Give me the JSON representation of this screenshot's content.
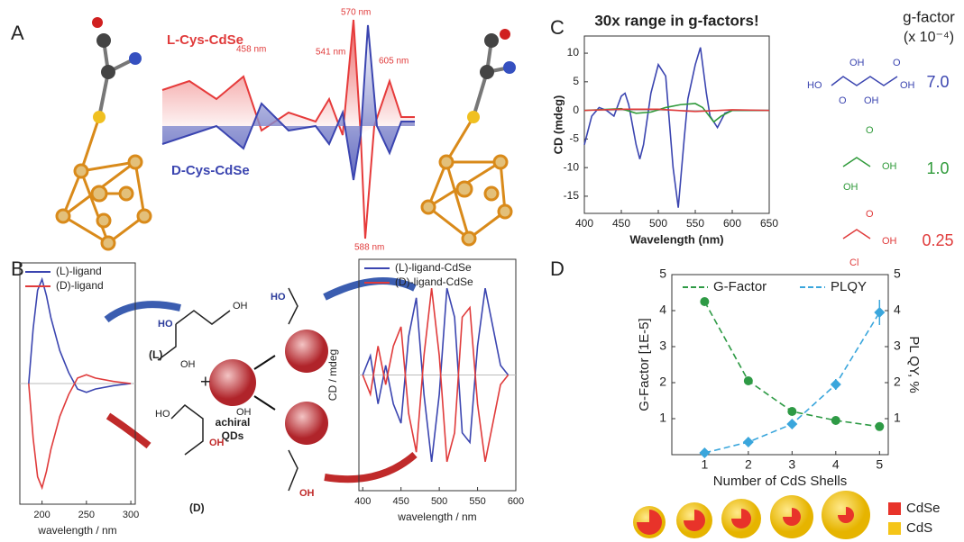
{
  "panels": {
    "A": {
      "label": "A",
      "l_name": "L-Cys-CdSe",
      "d_name": "D-Cys-CdSe",
      "peaks": [
        "458 nm",
        "541 nm",
        "570 nm",
        "605 nm",
        "588 nm"
      ]
    },
    "B": {
      "label": "B",
      "plus": "+",
      "l": "(L)",
      "d": "(D)",
      "qd": [
        "achiral",
        "QDs"
      ],
      "atoms": [
        "OH",
        "HO",
        "OH",
        "HO",
        "OH",
        "OH",
        "HO",
        "OH"
      ]
    },
    "C": {
      "label": "C",
      "gf_title": "g-factor",
      "gf_unit": "(x 10⁻⁴)",
      "g_values": [
        "7.0",
        "1.0",
        "0.25"
      ],
      "atoms": [
        "HO",
        "O",
        "OH",
        "OH",
        "O",
        "OH",
        "O",
        "OH",
        "OH",
        "O",
        "OH",
        "Cl"
      ]
    },
    "D": {
      "label": "D",
      "materials": [
        "CdSe",
        "CdS"
      ]
    }
  },
  "chart_data": [
    {
      "type": "line",
      "title": "30x range in g-factors!",
      "x_label": "Wavelength (nm)",
      "y_label": "CD (mdeg)",
      "xlim": [
        400,
        650
      ],
      "xticks": [
        400,
        450,
        500,
        550,
        600,
        650
      ],
      "ylim": [
        -18,
        13
      ],
      "yticks": [
        -15,
        -10,
        -5,
        0,
        5,
        10
      ],
      "series": [
        {
          "color": "#3b45b0",
          "x": [
            400,
            410,
            420,
            430,
            440,
            450,
            455,
            460,
            470,
            475,
            480,
            490,
            500,
            510,
            520,
            527,
            535,
            540,
            550,
            557,
            565,
            570,
            580,
            590,
            600,
            650
          ],
          "values": [
            -6,
            -1,
            0.5,
            0,
            -1,
            2.5,
            3,
            1,
            -6,
            -8.5,
            -6,
            3,
            8,
            6,
            -10,
            -17,
            -5,
            2,
            8,
            11,
            3,
            -1,
            -3,
            -0.5,
            0,
            0
          ]
        },
        {
          "color": "#2f9a3a",
          "x": [
            400,
            450,
            470,
            490,
            510,
            530,
            550,
            560,
            575,
            585,
            600,
            650
          ],
          "values": [
            0,
            0.3,
            -0.5,
            -0.3,
            0.5,
            1,
            1.2,
            0.5,
            -2,
            -1,
            0,
            0
          ]
        },
        {
          "color": "#e03b3b",
          "x": [
            400,
            450,
            500,
            550,
            600,
            650
          ],
          "values": [
            0,
            0.2,
            0.2,
            -0.2,
            0.1,
            0
          ]
        }
      ]
    },
    {
      "type": "line",
      "x_label": "Number of CdS Shells",
      "y_label": "G-Factor [1E-5]",
      "y2_label": "PL QY, %",
      "legend": "top",
      "xlim": [
        0.25,
        5.2
      ],
      "xticks": [
        1,
        2,
        3,
        4,
        5
      ],
      "ylim": [
        0,
        5
      ],
      "yticks": [
        1,
        2,
        3,
        4,
        5
      ],
      "y2lim": [
        0,
        5
      ],
      "y2ticks": [
        1,
        2,
        3,
        4,
        5
      ],
      "series": [
        {
          "name": "G-Factor",
          "color": "#2e9a45",
          "marker": "circle",
          "x": [
            1,
            2,
            3,
            4,
            5
          ],
          "values": [
            4.25,
            2.05,
            1.2,
            0.95,
            0.78
          ]
        },
        {
          "name": "PLQY",
          "color": "#3aa6dc",
          "marker": "diamond",
          "axis": "y2",
          "x": [
            1,
            2,
            3,
            4,
            5
          ],
          "values": [
            0.05,
            0.35,
            0.85,
            1.95,
            3.95
          ],
          "errors": [
            0.05,
            0.05,
            0.1,
            0.15,
            0.35
          ]
        }
      ]
    },
    {
      "type": "line",
      "x_label": "wavelength / nm",
      "y_label": "CD / mdeg",
      "legend": "top-left",
      "xlim": [
        175,
        305
      ],
      "xticks": [
        200,
        250,
        300
      ],
      "ylim": [
        -1.1,
        1.1
      ],
      "series": [
        {
          "name": "(L)-ligand",
          "color": "#3b45b0",
          "x": [
            185,
            190,
            195,
            200,
            205,
            210,
            220,
            230,
            240,
            250,
            260,
            280,
            300
          ],
          "values": [
            0,
            0.5,
            0.85,
            0.95,
            0.8,
            0.6,
            0.3,
            0.1,
            -0.05,
            -0.08,
            -0.05,
            -0.02,
            0
          ]
        },
        {
          "name": "(D)-ligand",
          "color": "#e03b3b",
          "x": [
            185,
            190,
            195,
            200,
            205,
            210,
            220,
            230,
            240,
            250,
            260,
            280,
            300
          ],
          "values": [
            0,
            -0.5,
            -0.85,
            -0.95,
            -0.8,
            -0.6,
            -0.3,
            -0.1,
            0.05,
            0.08,
            0.05,
            0.02,
            0
          ]
        }
      ]
    },
    {
      "type": "line",
      "x_label": "wavelength / nm",
      "y_label": "CD / mdeg",
      "legend": "top-left",
      "xlim": [
        395,
        600
      ],
      "xticks": [
        400,
        450,
        500,
        550,
        600
      ],
      "ylim": [
        -1.2,
        1.2
      ],
      "series": [
        {
          "name": "(L)-ligand-CdSe",
          "color": "#3b45b0",
          "x": [
            400,
            410,
            420,
            430,
            440,
            450,
            460,
            470,
            480,
            490,
            500,
            510,
            520,
            530,
            540,
            550,
            560,
            570,
            580,
            590
          ],
          "values": [
            0,
            0.2,
            -0.3,
            0.1,
            -0.3,
            -0.5,
            0.4,
            0.8,
            -0.2,
            -0.9,
            -0.2,
            0.9,
            0.6,
            -0.6,
            -0.7,
            0.3,
            0.9,
            0.5,
            0.1,
            0
          ]
        },
        {
          "name": "(D)-ligand-CdSe",
          "color": "#e03b3b",
          "x": [
            400,
            410,
            420,
            430,
            440,
            450,
            460,
            470,
            480,
            490,
            500,
            510,
            520,
            530,
            540,
            550,
            560,
            570,
            580,
            590
          ],
          "values": [
            0,
            -0.2,
            0.3,
            -0.1,
            0.3,
            0.5,
            -0.4,
            -0.8,
            0.2,
            0.9,
            0.2,
            -0.9,
            -0.6,
            0.6,
            0.7,
            -0.3,
            -0.9,
            -0.5,
            -0.1,
            0
          ]
        }
      ]
    }
  ]
}
